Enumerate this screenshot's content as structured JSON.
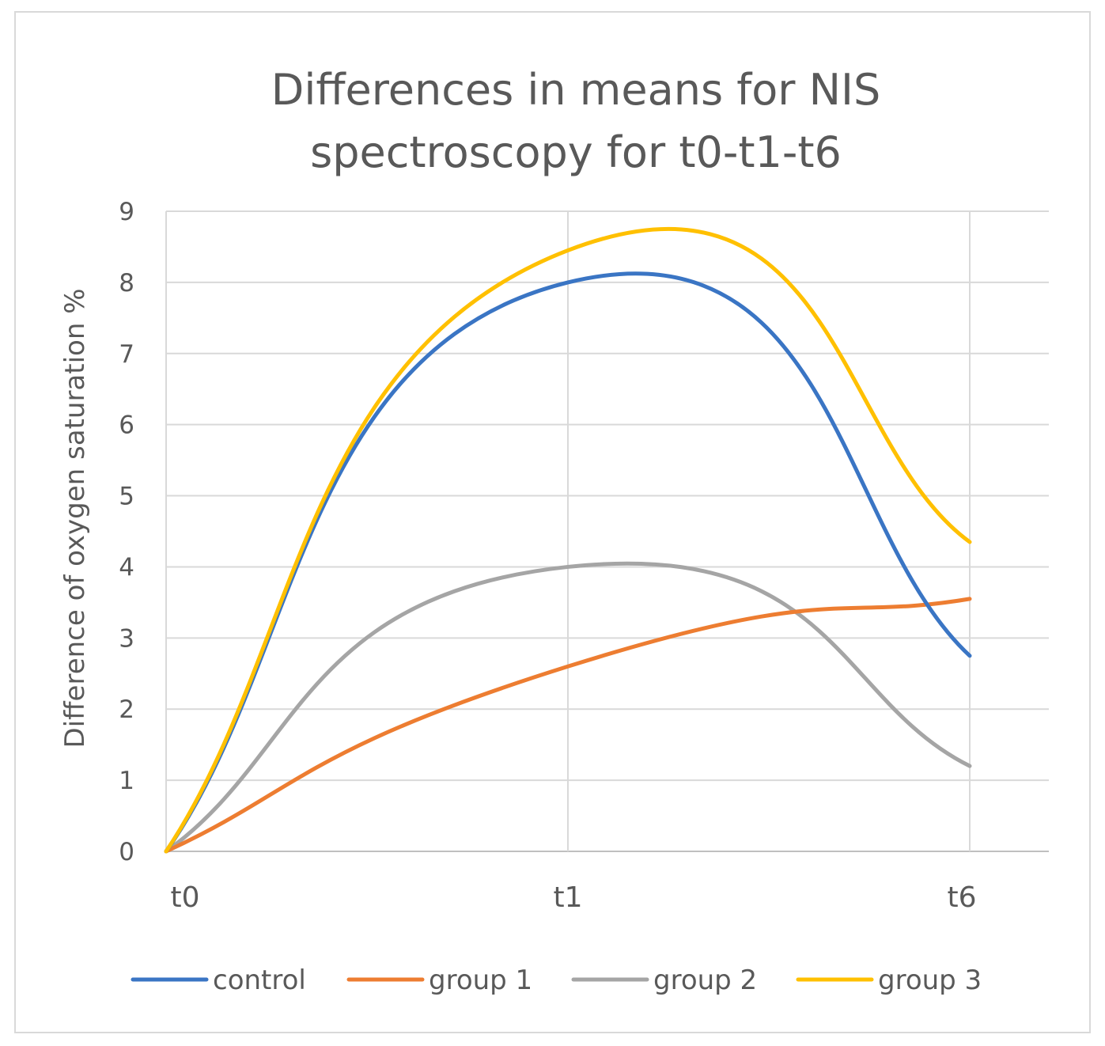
{
  "chart_data": {
    "type": "line",
    "title_lines": [
      "Differences in means for NIS",
      "spectroscopy for t0-t1-t6"
    ],
    "categories": [
      "t0",
      "t1",
      "t6"
    ],
    "ylabel": "Difference of oxygen saturation %",
    "xlabel": "",
    "ylim": [
      0,
      9
    ],
    "yticks": [
      "0",
      "1",
      "2",
      "3",
      "4",
      "5",
      "6",
      "7",
      "8",
      "9"
    ],
    "grid": true,
    "smooth": true,
    "legend_position": "bottom",
    "series": [
      {
        "name": "control",
        "color": "#3a75c4",
        "values": [
          0,
          8.0,
          2.75
        ]
      },
      {
        "name": "group 1",
        "color": "#ed7d31",
        "values": [
          0,
          2.6,
          3.55
        ]
      },
      {
        "name": "group 2",
        "color": "#a5a5a5",
        "values": [
          0,
          4.0,
          1.2
        ]
      },
      {
        "name": "group 3",
        "color": "#ffc000",
        "values": [
          0,
          8.45,
          4.35
        ]
      }
    ]
  }
}
